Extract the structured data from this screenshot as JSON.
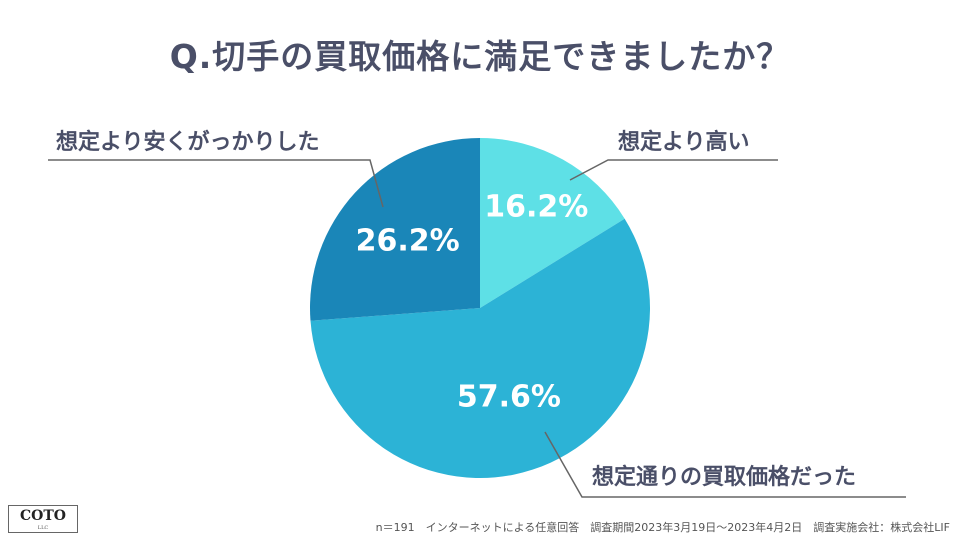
{
  "chart_data": {
    "type": "pie",
    "title": "Q.切手の買取価格に満足できましたか？",
    "start_angle_deg": 0,
    "direction": "clockwise",
    "slices": [
      {
        "label": "想定より高い",
        "value": 16.2,
        "value_label": "16.2%",
        "color": "#5ee0e6"
      },
      {
        "label": "想定通りの買取価格だった",
        "value": 57.6,
        "value_label": "57.6%",
        "color": "#2cb3d6"
      },
      {
        "label": "想定より安くがっかりした",
        "value": 26.2,
        "value_label": "26.2%",
        "color": "#1a86b8"
      }
    ]
  },
  "logo": {
    "main": "COTO",
    "sub": "LLC"
  },
  "footnote": "n＝191　インターネットによる任意回答　調査期間2023年3月19日〜2023年4月2日　調査実施会社：株式会社LIF"
}
